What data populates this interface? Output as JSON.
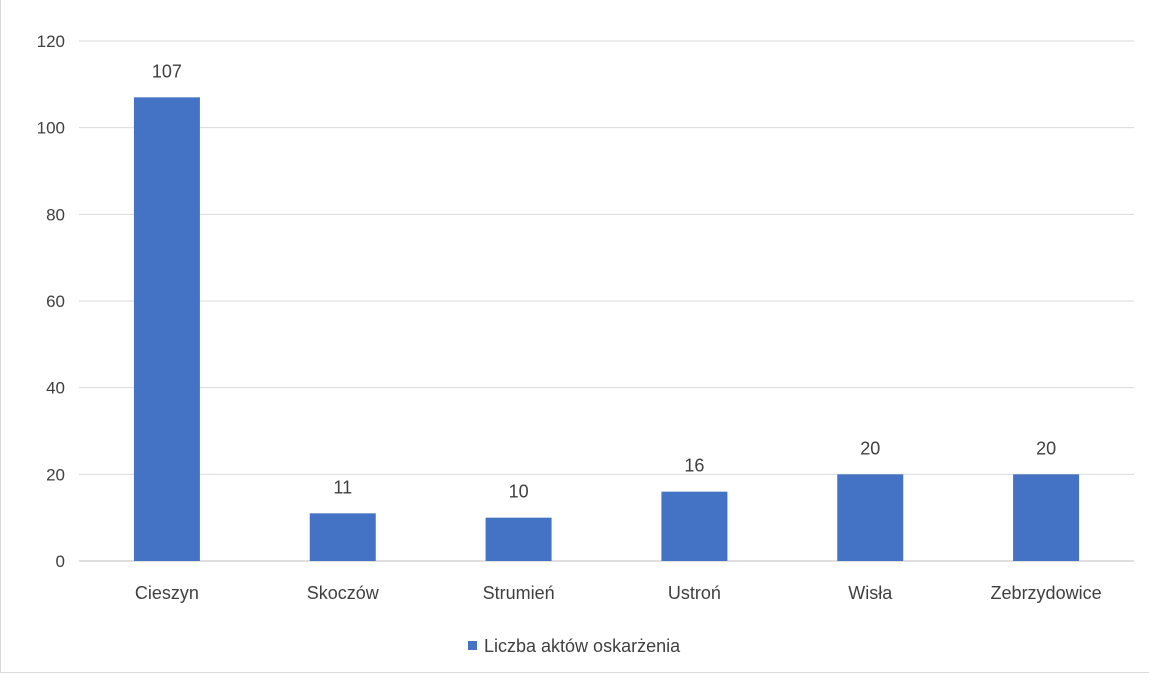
{
  "chart_data": {
    "type": "bar",
    "title": "",
    "xlabel": "",
    "ylabel": "",
    "categories": [
      "Cieszyn",
      "Skoczów",
      "Strumień",
      "Ustroń",
      "Wisła",
      "Zebrzydowice"
    ],
    "series": [
      {
        "name": "Liczba aktów oskarżenia",
        "values": [
          107,
          11,
          10,
          16,
          20,
          20
        ],
        "color": "#4472c4"
      }
    ],
    "ylim": [
      0,
      120
    ],
    "yticks": [
      0,
      20,
      40,
      60,
      80,
      100,
      120
    ],
    "grid": true,
    "legend": "bottom",
    "data_labels": true
  }
}
